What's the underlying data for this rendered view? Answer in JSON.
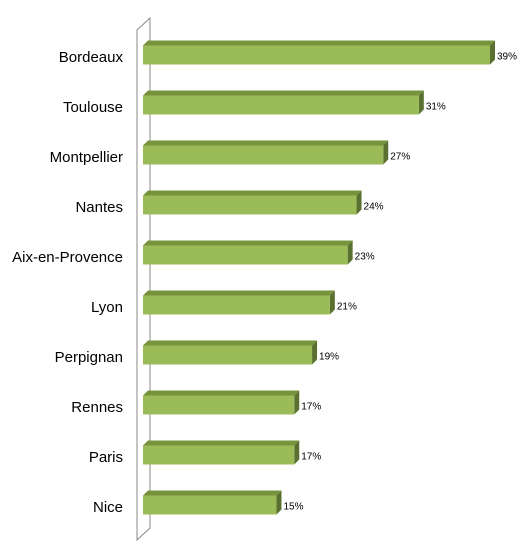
{
  "chart_data": {
    "type": "bar",
    "orientation": "horizontal",
    "categories": [
      "Bordeaux",
      "Toulouse",
      "Montpellier",
      "Nantes",
      "Aix-en-Provence",
      "Lyon",
      "Perpignan",
      "Rennes",
      "Paris",
      "Nice"
    ],
    "values": [
      39,
      31,
      27,
      24,
      23,
      21,
      19,
      17,
      17,
      15
    ],
    "value_labels": [
      "39%",
      "31%",
      "27%",
      "24%",
      "23%",
      "21%",
      "19%",
      "17%",
      "17%",
      "15%"
    ],
    "color": "#9bbb59"
  }
}
